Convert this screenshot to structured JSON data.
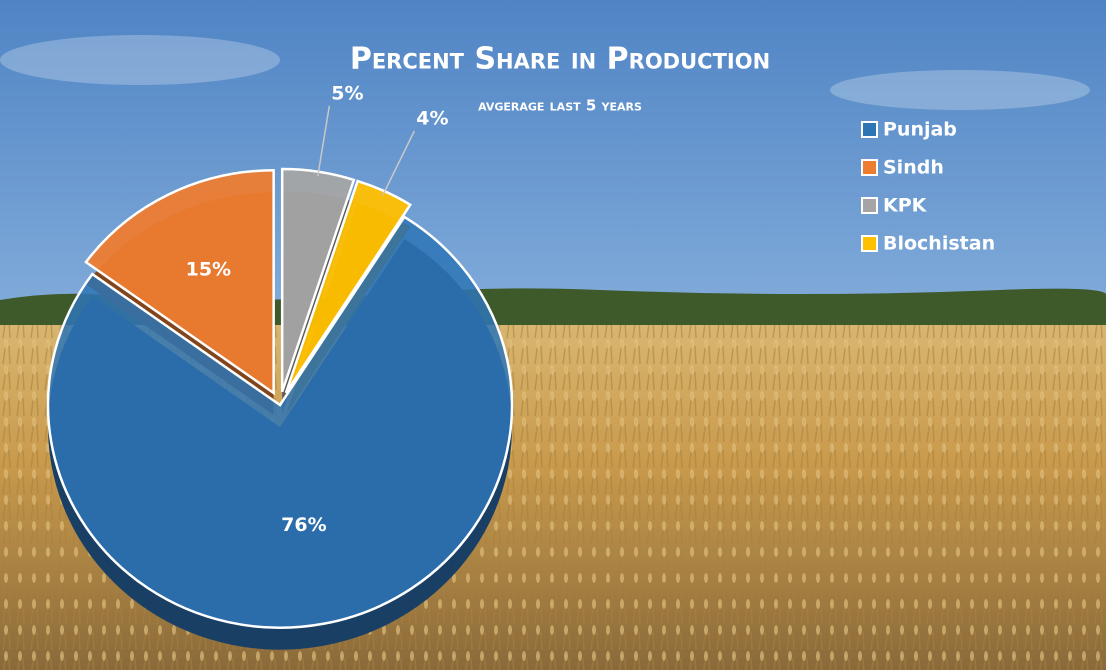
{
  "chart_data": {
    "type": "pie",
    "title": "Percent Share in Production",
    "subtitle": "avgerage last 5 years",
    "categories": [
      "Punjab",
      "Sindh",
      "KPK",
      "Blochistan"
    ],
    "values": [
      76,
      15,
      5,
      4
    ],
    "value_labels": [
      "76%",
      "15%",
      "5%",
      "4%"
    ],
    "colors": [
      "#2e75b6",
      "#ed7d31",
      "#a5a5a5",
      "#ffc000"
    ],
    "legend": "top-right"
  }
}
